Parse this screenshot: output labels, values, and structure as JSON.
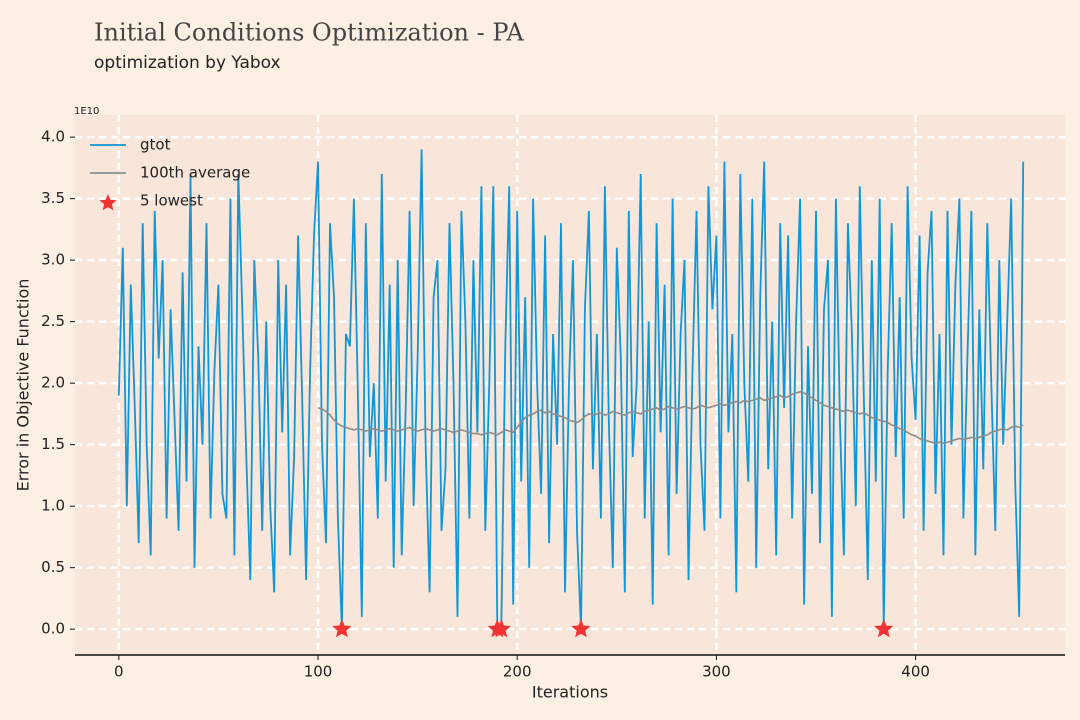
{
  "chart_data": {
    "type": "line",
    "title": "Initial Conditions Optimization - PA",
    "subtitle": "optimization by Yabox",
    "xlabel": "Iterations",
    "ylabel": "Error in Objective Function",
    "offset_label": "1E10",
    "legend": "upper left",
    "grid": true,
    "xlim": [
      -22,
      475
    ],
    "ylim": [
      -0.21,
      4.18
    ],
    "xticks": [
      0,
      100,
      200,
      300,
      400
    ],
    "yticks": [
      {
        "value": 0,
        "label": "0.0"
      },
      0.5,
      {
        "value": 1,
        "label": "1.0"
      },
      1.5,
      {
        "value": 2,
        "label": "2.0"
      },
      2.5,
      {
        "value": 3,
        "label": "3.0"
      },
      3.5,
      {
        "value": 4,
        "label": "4.0"
      }
    ],
    "x": [
      0,
      2,
      4,
      6,
      8,
      10,
      12,
      14,
      16,
      18,
      20,
      22,
      24,
      26,
      28,
      30,
      32,
      34,
      36,
      38,
      40,
      42,
      44,
      46,
      48,
      50,
      52,
      54,
      56,
      58,
      60,
      62,
      64,
      66,
      68,
      70,
      72,
      74,
      76,
      78,
      80,
      82,
      84,
      86,
      88,
      90,
      92,
      94,
      96,
      98,
      100,
      102,
      104,
      106,
      108,
      110,
      112,
      114,
      116,
      118,
      120,
      122,
      124,
      126,
      128,
      130,
      132,
      134,
      136,
      138,
      140,
      142,
      144,
      146,
      148,
      150,
      152,
      154,
      156,
      158,
      160,
      162,
      164,
      166,
      168,
      170,
      172,
      174,
      176,
      178,
      180,
      182,
      184,
      186,
      188,
      190,
      192,
      194,
      196,
      198,
      200,
      202,
      204,
      206,
      208,
      210,
      212,
      214,
      216,
      218,
      220,
      222,
      224,
      226,
      228,
      230,
      232,
      234,
      236,
      238,
      240,
      242,
      244,
      246,
      248,
      250,
      252,
      254,
      256,
      258,
      260,
      262,
      264,
      266,
      268,
      270,
      272,
      274,
      276,
      278,
      280,
      282,
      284,
      286,
      288,
      290,
      292,
      294,
      296,
      298,
      300,
      302,
      304,
      306,
      308,
      310,
      312,
      314,
      316,
      318,
      320,
      322,
      324,
      326,
      328,
      330,
      332,
      334,
      336,
      338,
      340,
      342,
      344,
      346,
      348,
      350,
      352,
      354,
      356,
      358,
      360,
      362,
      364,
      366,
      368,
      370,
      372,
      374,
      376,
      378,
      380,
      382,
      384,
      386,
      388,
      390,
      392,
      394,
      396,
      398,
      400,
      402,
      404,
      406,
      408,
      410,
      412,
      414,
      416,
      418,
      420,
      422,
      424,
      426,
      428,
      430,
      432,
      434,
      436,
      438,
      440,
      442,
      444,
      446,
      448,
      450,
      452,
      454
    ],
    "series": [
      {
        "name": "gtot",
        "color": "#0f97d8",
        "values": [
          1.9,
          3.1,
          1.0,
          2.8,
          1.8,
          0.7,
          3.3,
          1.5,
          0.6,
          3.4,
          2.2,
          3.0,
          0.9,
          2.6,
          1.7,
          0.8,
          2.9,
          1.2,
          3.7,
          0.5,
          2.3,
          1.5,
          3.3,
          0.9,
          2.1,
          2.8,
          1.1,
          0.9,
          3.5,
          0.6,
          3.7,
          2.6,
          1.4,
          0.4,
          3.0,
          2.2,
          0.8,
          2.5,
          1.0,
          0.3,
          3.0,
          1.6,
          2.8,
          0.6,
          1.4,
          3.2,
          1.9,
          0.4,
          2.1,
          3.2,
          3.8,
          1.5,
          0.7,
          3.3,
          2.7,
          0.9,
          0.0,
          2.4,
          2.3,
          3.5,
          1.9,
          0.1,
          3.3,
          1.4,
          2.0,
          0.9,
          3.7,
          1.2,
          2.8,
          0.5,
          3.0,
          0.6,
          1.8,
          3.4,
          1.0,
          2.2,
          3.9,
          1.5,
          0.3,
          2.7,
          3.0,
          0.8,
          1.3,
          3.3,
          2.0,
          0.1,
          3.4,
          2.5,
          0.9,
          3.0,
          1.6,
          3.6,
          0.8,
          2.0,
          3.6,
          0.0,
          0.0,
          2.3,
          3.6,
          0.2,
          3.4,
          1.2,
          2.7,
          0.5,
          3.5,
          2.0,
          1.1,
          3.2,
          0.7,
          2.4,
          1.5,
          3.3,
          0.3,
          2.0,
          3.0,
          0.8,
          0.0,
          2.6,
          3.4,
          1.3,
          2.4,
          0.9,
          3.6,
          1.7,
          0.5,
          3.1,
          2.2,
          0.3,
          3.4,
          1.4,
          2.0,
          3.7,
          0.9,
          2.5,
          0.2,
          3.3,
          1.6,
          2.8,
          0.6,
          3.5,
          1.1,
          2.4,
          3.0,
          0.4,
          2.1,
          3.4,
          1.5,
          0.8,
          3.6,
          2.6,
          3.2,
          0.9,
          3.8,
          1.6,
          2.4,
          0.3,
          3.7,
          2.0,
          1.2,
          3.5,
          0.5,
          2.7,
          3.8,
          1.3,
          2.5,
          0.6,
          3.3,
          1.8,
          3.2,
          0.9,
          2.5,
          3.5,
          0.2,
          2.3,
          1.1,
          3.4,
          0.7,
          2.6,
          3.0,
          0.1,
          3.5,
          1.7,
          0.6,
          3.3,
          2.4,
          1.0,
          3.6,
          1.9,
          0.4,
          3.0,
          1.2,
          3.5,
          0.0,
          2.1,
          3.3,
          1.4,
          2.7,
          0.9,
          3.6,
          2.2,
          1.7,
          3.2,
          0.8,
          2.9,
          3.4,
          1.1,
          2.4,
          0.6,
          3.4,
          1.5,
          2.8,
          3.5,
          0.9,
          2.2,
          3.4,
          0.6,
          2.6,
          1.3,
          3.3,
          2.0,
          0.8,
          3.0,
          1.5,
          2.5,
          3.5,
          1.2,
          0.1,
          3.8
        ]
      },
      {
        "name": "100th average",
        "color": "#8c8c8c",
        "values": [
          null,
          null,
          null,
          null,
          null,
          null,
          null,
          null,
          null,
          null,
          null,
          null,
          null,
          null,
          null,
          null,
          null,
          null,
          null,
          null,
          null,
          null,
          null,
          null,
          null,
          null,
          null,
          null,
          null,
          null,
          null,
          null,
          null,
          null,
          null,
          null,
          null,
          null,
          null,
          null,
          null,
          null,
          null,
          null,
          null,
          null,
          null,
          null,
          null,
          null,
          1.8,
          1.79,
          1.77,
          1.74,
          1.7,
          1.67,
          1.65,
          1.64,
          1.63,
          1.62,
          1.63,
          1.62,
          1.61,
          1.62,
          1.63,
          1.62,
          1.61,
          1.62,
          1.63,
          1.62,
          1.61,
          1.62,
          1.63,
          1.64,
          1.62,
          1.61,
          1.62,
          1.63,
          1.62,
          1.61,
          1.62,
          1.63,
          1.62,
          1.61,
          1.6,
          1.61,
          1.62,
          1.61,
          1.6,
          1.59,
          1.59,
          1.58,
          1.59,
          1.6,
          1.59,
          1.58,
          1.6,
          1.62,
          1.61,
          1.6,
          1.64,
          1.68,
          1.72,
          1.74,
          1.75,
          1.77,
          1.78,
          1.76,
          1.77,
          1.75,
          1.74,
          1.73,
          1.72,
          1.7,
          1.69,
          1.68,
          1.7,
          1.73,
          1.75,
          1.74,
          1.75,
          1.76,
          1.74,
          1.75,
          1.77,
          1.76,
          1.75,
          1.74,
          1.76,
          1.77,
          1.76,
          1.75,
          1.77,
          1.78,
          1.79,
          1.8,
          1.78,
          1.79,
          1.81,
          1.8,
          1.79,
          1.8,
          1.81,
          1.8,
          1.79,
          1.8,
          1.82,
          1.81,
          1.8,
          1.81,
          1.82,
          1.83,
          1.82,
          1.83,
          1.84,
          1.85,
          1.84,
          1.86,
          1.85,
          1.86,
          1.87,
          1.88,
          1.86,
          1.87,
          1.88,
          1.89,
          1.9,
          1.88,
          1.89,
          1.91,
          1.92,
          1.93,
          1.92,
          1.9,
          1.88,
          1.86,
          1.84,
          1.82,
          1.81,
          1.8,
          1.79,
          1.78,
          1.77,
          1.78,
          1.77,
          1.76,
          1.75,
          1.76,
          1.74,
          1.72,
          1.71,
          1.7,
          1.69,
          1.68,
          1.66,
          1.65,
          1.63,
          1.62,
          1.6,
          1.58,
          1.57,
          1.55,
          1.54,
          1.53,
          1.52,
          1.51,
          1.52,
          1.51,
          1.52,
          1.53,
          1.54,
          1.55,
          1.54,
          1.55,
          1.56,
          1.55,
          1.56,
          1.57,
          1.58,
          1.6,
          1.61,
          1.62,
          1.63,
          1.62,
          1.64,
          1.65,
          1.64,
          1.66
        ]
      },
      {
        "name": "5 lowest",
        "type": "scatter",
        "color": "#f03434",
        "x": [
          112,
          190,
          192,
          232,
          384
        ],
        "values": [
          0,
          0,
          0,
          0,
          0
        ]
      }
    ]
  }
}
